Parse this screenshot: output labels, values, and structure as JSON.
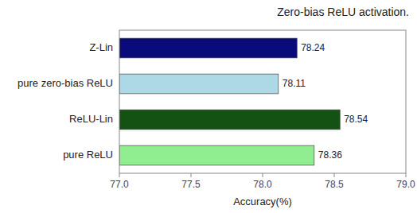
{
  "chart_data": {
    "type": "bar",
    "orientation": "horizontal",
    "title": "Zero-bias ReLU activation.",
    "xlabel": "Accuracy(%)",
    "categories": [
      "Z-Lin",
      "pure zero-bias ReLU",
      "ReLU-Lin",
      "pure ReLU"
    ],
    "values": [
      78.24,
      78.11,
      78.54,
      78.36
    ],
    "colors": [
      "#0a0a7a",
      "#add8e6",
      "#145214",
      "#90ee90"
    ],
    "xlim": [
      77.0,
      79.0
    ],
    "xticks": [
      {
        "value": 77.0,
        "label": "77.0"
      },
      77.5,
      {
        "value": 78.0,
        "label": "78.0"
      },
      78.5,
      {
        "value": 79.0,
        "label": "79.0"
      }
    ],
    "data_labels": true,
    "grid": false
  }
}
